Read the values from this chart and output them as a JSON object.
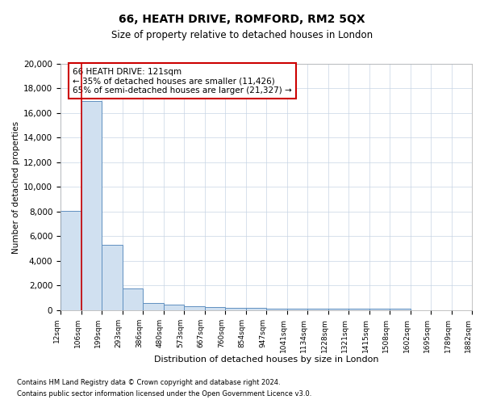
{
  "title1": "66, HEATH DRIVE, ROMFORD, RM2 5QX",
  "title2": "Size of property relative to detached houses in London",
  "xlabel": "Distribution of detached houses by size in London",
  "ylabel": "Number of detached properties",
  "annotation_title": "66 HEATH DRIVE: 121sqm",
  "annotation_line1": "← 35% of detached houses are smaller (11,426)",
  "annotation_line2": "65% of semi-detached houses are larger (21,327) →",
  "property_size_bin": 1,
  "footer1": "Contains HM Land Registry data © Crown copyright and database right 2024.",
  "footer2": "Contains public sector information licensed under the Open Government Licence v3.0.",
  "bar_color": "#d0e0f0",
  "bar_edge_color": "#6090c0",
  "red_line_color": "#cc0000",
  "annotation_box_color": "#ffffff",
  "annotation_box_edge_color": "#cc0000",
  "grid_color": "#c8d4e4",
  "bin_labels": [
    "12sqm",
    "106sqm",
    "199sqm",
    "293sqm",
    "386sqm",
    "480sqm",
    "573sqm",
    "667sqm",
    "760sqm",
    "854sqm",
    "947sqm",
    "1041sqm",
    "1134sqm",
    "1228sqm",
    "1321sqm",
    "1415sqm",
    "1508sqm",
    "1602sqm",
    "1695sqm",
    "1789sqm",
    "1882sqm"
  ],
  "bin_counts": [
    8050,
    17000,
    5300,
    1750,
    620,
    430,
    310,
    230,
    190,
    170,
    160,
    155,
    150,
    148,
    147,
    146,
    145,
    0,
    0,
    0
  ],
  "ylim": [
    0,
    20000
  ],
  "yticks": [
    0,
    2000,
    4000,
    6000,
    8000,
    10000,
    12000,
    14000,
    16000,
    18000,
    20000
  ]
}
